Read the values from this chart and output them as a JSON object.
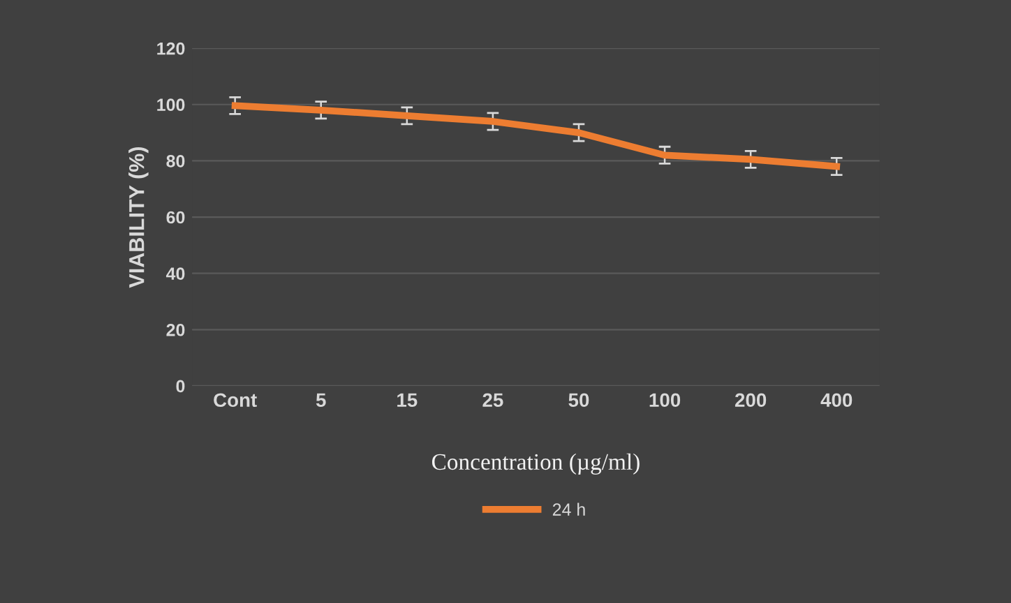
{
  "chart_data": {
    "type": "line",
    "xlabel": "Concentration (µg/ml)",
    "ylabel": "VIABILITY (%)",
    "categories": [
      "Cont",
      "5",
      "15",
      "25",
      "50",
      "100",
      "200",
      "400"
    ],
    "series": [
      {
        "name": "24 h",
        "color": "#ed7d31",
        "values": [
          99.6,
          98,
          96,
          94,
          90,
          82,
          80.5,
          78
        ],
        "errors": [
          3,
          3,
          3,
          3,
          3,
          3,
          3,
          3
        ]
      }
    ],
    "ylim": [
      0,
      120
    ],
    "yticks": [
      0,
      20,
      40,
      60,
      80,
      100,
      120
    ],
    "grid": "y",
    "legend": "bottom",
    "marker": "none",
    "line_style": "solid"
  }
}
